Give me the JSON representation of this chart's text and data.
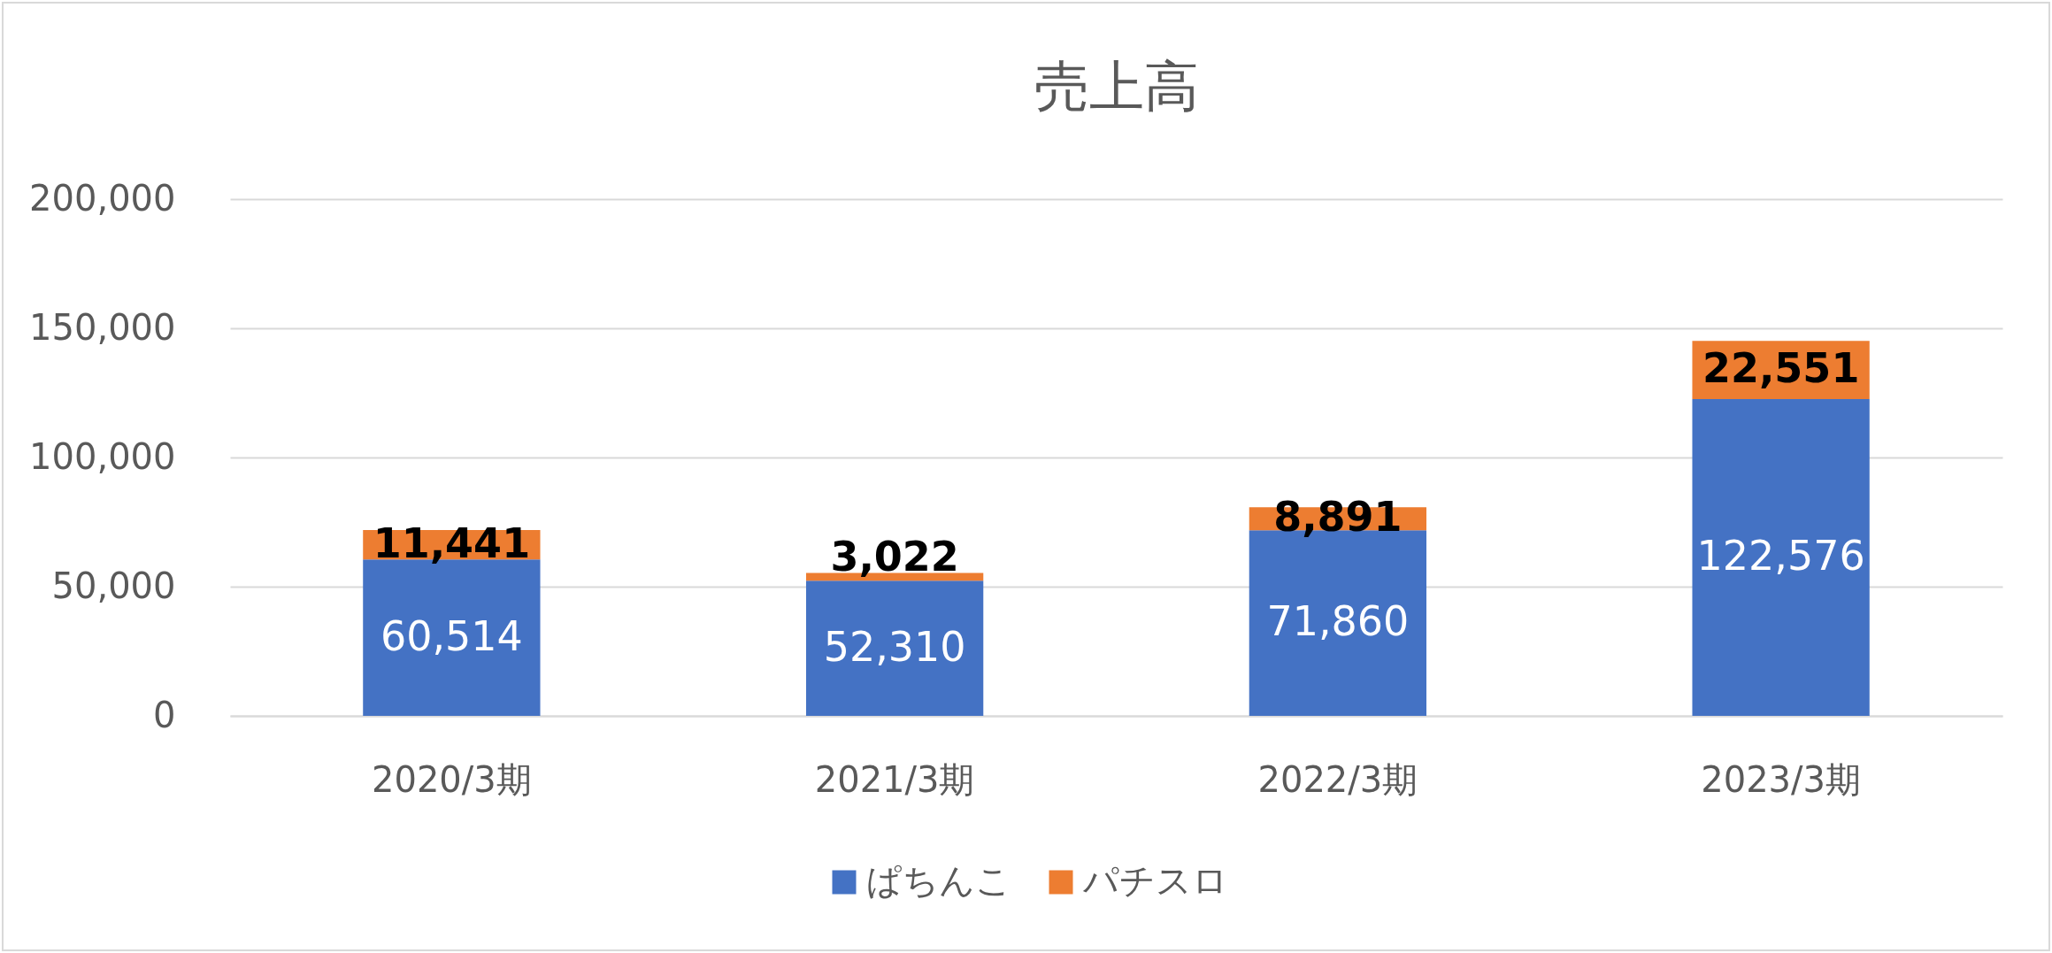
{
  "chart_data": {
    "type": "bar",
    "title": "売上高",
    "categories": [
      "2020/3期",
      "2021/3期",
      "2022/3期",
      "2023/3期"
    ],
    "series": [
      {
        "name": "ぱちんこ",
        "color": "#4472c4",
        "values": [
          60514,
          52310,
          71860,
          122576
        ],
        "value_labels": [
          "60,514",
          "52,310",
          "71,860",
          "122,576"
        ]
      },
      {
        "name": "パチスロ",
        "color": "#ed7d31",
        "values": [
          11441,
          3022,
          8891,
          22551
        ],
        "value_labels": [
          "11,441",
          "3,022",
          "8,891",
          "22,551"
        ]
      }
    ],
    "stacked": true,
    "ylim": [
      0,
      200000
    ],
    "yticks": [
      0,
      {
        "value": 50000,
        "label": "50,000"
      },
      {
        "value": 100000,
        "label": "100,000"
      },
      {
        "value": 150000,
        "label": "150,000"
      },
      {
        "value": 200000,
        "label": "200,000"
      }
    ],
    "grid": "y",
    "legend": "bottom"
  }
}
